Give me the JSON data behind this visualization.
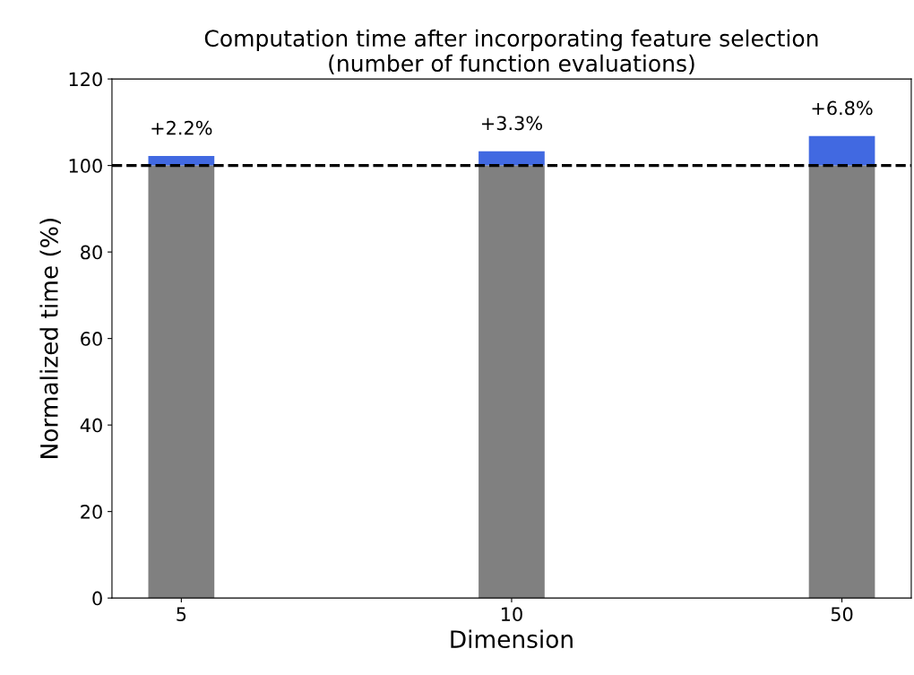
{
  "chart_data": {
    "type": "bar",
    "title": "Computation time after incorporating feature selection\n(number of function evaluations)",
    "xlabel": "Dimension",
    "ylabel": "Normalized time (%)",
    "categories": [
      "5",
      "10",
      "50"
    ],
    "stacked": true,
    "series": [
      {
        "color": "#808080",
        "values": [
          100,
          100,
          100
        ]
      },
      {
        "color": "#4169e1",
        "values": [
          2.2,
          3.3,
          6.8
        ],
        "value_labels": [
          "+2.2%",
          "+3.3%",
          "+6.8%"
        ]
      }
    ],
    "ylim": [
      0,
      120
    ],
    "yticks": [
      0,
      20,
      40,
      60,
      80,
      100,
      120
    ],
    "ref_lines": [
      {
        "axis": "y",
        "value": 100,
        "color": "#000000",
        "line_style": "dashed"
      }
    ],
    "grid": false
  }
}
